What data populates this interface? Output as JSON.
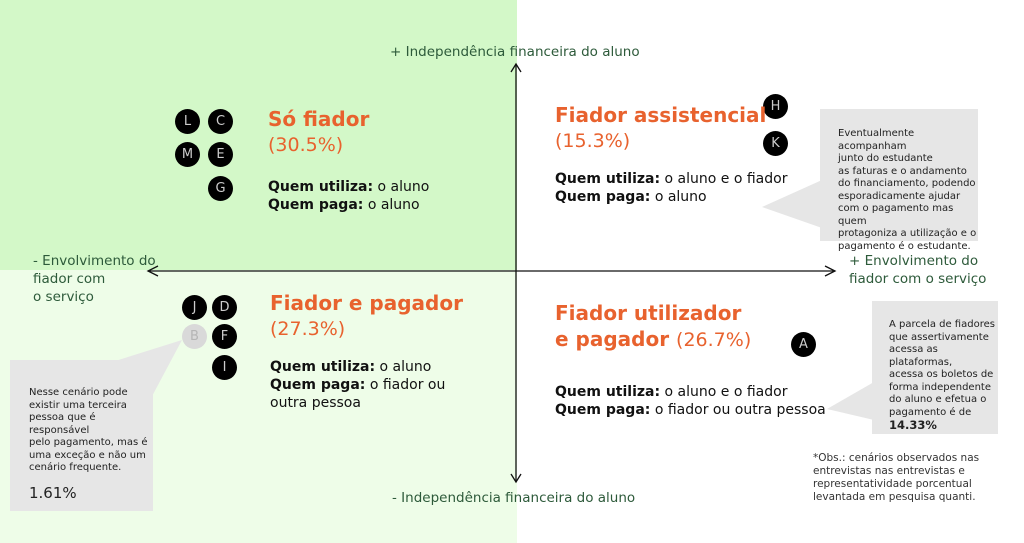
{
  "colors": {
    "accent": "#e8622e",
    "axis_text": "#2d5a3a",
    "quadrant_top_left": "#d3f8c8",
    "quadrant_bottom_left": "#eefde8",
    "callout": "#e6e6e6"
  },
  "axes": {
    "top": "+ Independência financeira do aluno",
    "bottom": "- Independência financeira do aluno",
    "left": [
      "- Envolvimento do",
      "fiador com",
      "o serviço"
    ],
    "right": [
      "+ Envolvimento do",
      "fiador com o serviço"
    ]
  },
  "quadrants": {
    "top_left": {
      "title": "Só fiador",
      "pct": "(30.5%)",
      "uses_label": "Quem utiliza:",
      "uses": " o aluno",
      "pays_label": "Quem paga:",
      "pays": " o aluno",
      "markers": [
        "L",
        "C",
        "M",
        "E",
        "G"
      ]
    },
    "top_right": {
      "title": "Fiador assistencial",
      "pct": "(15.3%)",
      "uses_label": "Quem utiliza:",
      "uses": " o aluno e o fiador",
      "pays_label": "Quem paga:",
      "pays": " o aluno",
      "markers": [
        "H",
        "K"
      ]
    },
    "bottom_left": {
      "title": "Fiador e pagador",
      "pct": "(27.3%)",
      "uses_label": "Quem utiliza:",
      "uses": " o aluno",
      "pays_label": "Quem paga:",
      "pays": " o fiador ou",
      "pays2": "outra pessoa",
      "markers": [
        "J",
        "D",
        "B",
        "F",
        "I"
      ]
    },
    "bottom_right": {
      "title": "Fiador utilizador",
      "title2": "e pagador",
      "pct": "(26.7%)",
      "uses_label": "Quem utiliza:",
      "uses": " o aluno e o fiador",
      "pays_label": "Quem paga:",
      "pays": " o fiador ou outra pessoa",
      "markers": [
        "A"
      ]
    }
  },
  "callouts": {
    "assistencial": [
      "Eventualmente acompanham",
      "junto do estudante",
      "as faturas e o andamento",
      "do financiamento, podendo",
      "esporadicamente ajudar",
      "com o pagamento mas quem",
      "protagoniza a utilização e o",
      "pagamento é o estudante."
    ],
    "terceira": {
      "lines": [
        "Nesse cenário pode",
        "existir uma terceira",
        "pessoa que é responsável",
        "pelo pagamento, mas é",
        "uma exceção e não um",
        "cenário frequente."
      ],
      "value": "1.61%"
    },
    "plataformas": {
      "lines": [
        "A parcela de fiadores",
        "que assertivamente",
        "acessa as plataformas,",
        "acessa os boletos de",
        "forma independente",
        "do aluno e efetua o",
        "pagamento é de"
      ],
      "value": "14.33%"
    }
  },
  "note": [
    "*Obs.: cenários observados nas",
    "entrevistas nas entrevistas e",
    "representatividade porcentual",
    "levantada em pesquisa quanti."
  ]
}
